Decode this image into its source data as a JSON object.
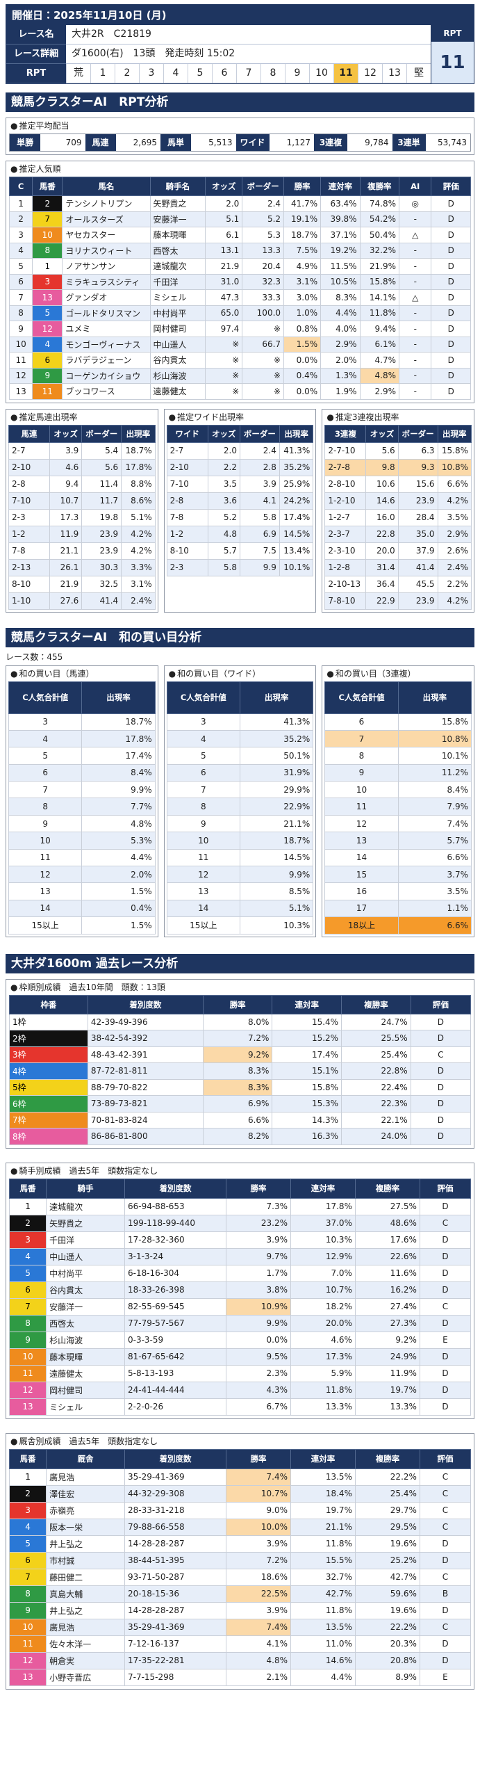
{
  "header": {
    "title": "開催日：2025年11月10日 (月)",
    "race_name_label": "レース名",
    "race_name": "大井2R　C21819",
    "detail_label": "レース詳細",
    "detail": "ダ1600(右)　13頭　発走時刻 15:02",
    "rpt_label": "RPT",
    "rpt_scale": [
      "荒",
      "1",
      "2",
      "3",
      "4",
      "5",
      "6",
      "7",
      "8",
      "9",
      "10",
      "11",
      "12",
      "13",
      "堅"
    ],
    "rpt_box_label": "RPT",
    "rpt_value": "11"
  },
  "rpt_analysis": {
    "title": "競馬クラスターAI　RPT分析",
    "payout": {
      "title": "推定平均配当",
      "items": [
        {
          "label": "単勝",
          "value": "709"
        },
        {
          "label": "馬連",
          "value": "2,695"
        },
        {
          "label": "馬単",
          "value": "5,513"
        },
        {
          "label": "ワイド",
          "value": "1,127"
        },
        {
          "label": "3連複",
          "value": "9,784"
        },
        {
          "label": "3連単",
          "value": "53,743"
        }
      ]
    },
    "popularity": {
      "title": "推定人気順",
      "columns": [
        "C",
        "馬番",
        "馬名",
        "騎手名",
        "オッズ",
        "ボーダー",
        "勝率",
        "連対率",
        "複勝率",
        "AI",
        "評価"
      ],
      "rows": [
        [
          "1",
          "2",
          "テンシノトリプン",
          "矢野貴之",
          "2.0",
          "2.4",
          "41.7%",
          "63.4%",
          "74.8%",
          "◎",
          "D"
        ],
        [
          "2",
          "7",
          "オールスターズ",
          "安藤洋一",
          "5.1",
          "5.2",
          "19.1%",
          "39.8%",
          "54.2%",
          "-",
          "D"
        ],
        [
          "3",
          "10",
          "ヤセカスター",
          "藤本現暉",
          "6.1",
          "5.3",
          "18.7%",
          "37.1%",
          "50.4%",
          "△",
          "D"
        ],
        [
          "4",
          "8",
          "ヨリナスウィート",
          "西啓太",
          "13.1",
          "13.3",
          "7.5%",
          "19.2%",
          "32.2%",
          "-",
          "D"
        ],
        [
          "5",
          "1",
          "ノアサンサン",
          "達城龍次",
          "21.9",
          "20.4",
          "4.9%",
          "11.5%",
          "21.9%",
          "-",
          "D"
        ],
        [
          "6",
          "3",
          "ミラキュラスシティ",
          "千田洋",
          "31.0",
          "32.3",
          "3.1%",
          "10.5%",
          "15.8%",
          "-",
          "D"
        ],
        [
          "7",
          "13",
          "グァンダオ",
          "ミシェル",
          "47.3",
          "33.3",
          "3.0%",
          "8.3%",
          "14.1%",
          "△",
          "D"
        ],
        [
          "8",
          "5",
          "ゴールドタリスマン",
          "中村尚平",
          "65.0",
          "100.0",
          "1.0%",
          "4.4%",
          "11.8%",
          "-",
          "D"
        ],
        [
          "9",
          "12",
          "ユメミ",
          "岡村健司",
          "97.4",
          "※",
          "0.8%",
          "4.0%",
          "9.4%",
          "-",
          "D"
        ],
        [
          "10",
          "4",
          "モンゴーヴィーナス",
          "中山遥人",
          "※",
          "66.7",
          "1.5%",
          "2.9%",
          "6.1%",
          "-",
          "D"
        ],
        [
          "11",
          "6",
          "ラバデラジェーン",
          "谷内貫太",
          "※",
          "※",
          "0.0%",
          "2.0%",
          "4.7%",
          "-",
          "D"
        ],
        [
          "12",
          "9",
          "コーゲンカイショウ",
          "杉山海波",
          "※",
          "※",
          "0.4%",
          "1.3%",
          "4.8%",
          "-",
          "D"
        ],
        [
          "13",
          "11",
          "ブッコワース",
          "遠藤健太",
          "※",
          "※",
          "0.0%",
          "1.9%",
          "2.9%",
          "-",
          "D"
        ]
      ]
    },
    "pair_tables": [
      {
        "title": "推定馬連出現率",
        "columns": [
          "馬連",
          "オッズ",
          "ボーダー",
          "出現率"
        ],
        "rows": [
          [
            "2-7",
            "3.9",
            "5.4",
            "18.7%"
          ],
          [
            "2-10",
            "4.6",
            "5.6",
            "17.8%"
          ],
          [
            "2-8",
            "9.4",
            "11.4",
            "8.8%"
          ],
          [
            "7-10",
            "10.7",
            "11.7",
            "8.6%"
          ],
          [
            "2-3",
            "17.3",
            "19.8",
            "5.1%"
          ],
          [
            "1-2",
            "11.9",
            "23.9",
            "4.2%"
          ],
          [
            "7-8",
            "21.1",
            "23.9",
            "4.2%"
          ],
          [
            "2-13",
            "26.1",
            "30.3",
            "3.3%"
          ],
          [
            "8-10",
            "21.9",
            "32.5",
            "3.1%"
          ],
          [
            "1-10",
            "27.6",
            "41.4",
            "2.4%"
          ]
        ]
      },
      {
        "title": "推定ワイド出現率",
        "columns": [
          "ワイド",
          "オッズ",
          "ボーダー",
          "出現率"
        ],
        "rows": [
          [
            "2-7",
            "2.0",
            "2.4",
            "41.3%"
          ],
          [
            "2-10",
            "2.2",
            "2.8",
            "35.2%"
          ],
          [
            "7-10",
            "3.5",
            "3.9",
            "25.9%"
          ],
          [
            "2-8",
            "3.6",
            "4.1",
            "24.2%"
          ],
          [
            "7-8",
            "5.2",
            "5.8",
            "17.4%"
          ],
          [
            "1-2",
            "4.8",
            "6.9",
            "14.5%"
          ],
          [
            "8-10",
            "5.7",
            "7.5",
            "13.4%"
          ],
          [
            "2-3",
            "5.8",
            "9.9",
            "10.1%"
          ]
        ]
      },
      {
        "title": "推定3連複出現率",
        "columns": [
          "3連複",
          "オッズ",
          "ボーダー",
          "出現率"
        ],
        "rows": [
          [
            "2-7-10",
            "5.6",
            "6.3",
            "15.8%"
          ],
          [
            "2-7-8",
            "9.8",
            "9.3",
            "10.8%"
          ],
          [
            "2-8-10",
            "10.6",
            "15.6",
            "6.6%"
          ],
          [
            "1-2-10",
            "14.6",
            "23.9",
            "4.2%"
          ],
          [
            "1-2-7",
            "16.0",
            "28.4",
            "3.5%"
          ],
          [
            "2-3-7",
            "22.8",
            "35.0",
            "2.9%"
          ],
          [
            "2-3-10",
            "20.0",
            "37.9",
            "2.6%"
          ],
          [
            "1-2-8",
            "31.4",
            "41.4",
            "2.4%"
          ],
          [
            "2-10-13",
            "36.4",
            "45.5",
            "2.2%"
          ],
          [
            "7-8-10",
            "22.9",
            "23.9",
            "4.2%"
          ]
        ]
      }
    ]
  },
  "sum_analysis": {
    "title": "競馬クラスターAI　和の買い目分析",
    "race_count": "レース数：455",
    "tables": [
      {
        "title": "和の買い目（馬連）",
        "columns": [
          "C人気合計値",
          "出現率"
        ],
        "rows": [
          [
            "3",
            "18.7%"
          ],
          [
            "4",
            "17.8%"
          ],
          [
            "5",
            "17.4%"
          ],
          [
            "6",
            "8.4%"
          ],
          [
            "7",
            "9.9%"
          ],
          [
            "8",
            "7.7%"
          ],
          [
            "9",
            "4.8%"
          ],
          [
            "10",
            "5.3%"
          ],
          [
            "11",
            "4.4%"
          ],
          [
            "12",
            "2.0%"
          ],
          [
            "13",
            "1.5%"
          ],
          [
            "14",
            "0.4%"
          ],
          [
            "15以上",
            "1.5%"
          ]
        ]
      },
      {
        "title": "和の買い目（ワイド）",
        "columns": [
          "C人気合計値",
          "出現率"
        ],
        "rows": [
          [
            "3",
            "41.3%"
          ],
          [
            "4",
            "35.2%"
          ],
          [
            "5",
            "50.1%"
          ],
          [
            "6",
            "31.9%"
          ],
          [
            "7",
            "29.9%"
          ],
          [
            "8",
            "22.9%"
          ],
          [
            "9",
            "21.1%"
          ],
          [
            "10",
            "18.7%"
          ],
          [
            "11",
            "14.5%"
          ],
          [
            "12",
            "9.9%"
          ],
          [
            "13",
            "8.5%"
          ],
          [
            "14",
            "5.1%"
          ],
          [
            "15以上",
            "10.3%"
          ]
        ]
      },
      {
        "title": "和の買い目（3連複）",
        "columns": [
          "C人気合計値",
          "出現率"
        ],
        "rows": [
          [
            "6",
            "15.8%"
          ],
          [
            "7",
            "10.8%"
          ],
          [
            "8",
            "10.1%"
          ],
          [
            "9",
            "11.2%"
          ],
          [
            "10",
            "8.4%"
          ],
          [
            "11",
            "7.9%"
          ],
          [
            "12",
            "7.4%"
          ],
          [
            "13",
            "5.7%"
          ],
          [
            "14",
            "6.6%"
          ],
          [
            "15",
            "3.7%"
          ],
          [
            "16",
            "3.5%"
          ],
          [
            "17",
            "1.1%"
          ],
          [
            "18以上",
            "6.6%"
          ]
        ]
      }
    ]
  },
  "past_analysis": {
    "title": "大井ダ1600m 過去レース分析",
    "frame": {
      "title": "枠順別成績　過去10年間　頭数：13頭",
      "columns": [
        "枠番",
        "着別度数",
        "勝率",
        "連対率",
        "複勝率",
        "評価"
      ],
      "rows": [
        [
          "1枠",
          "42-39-49-396",
          "8.0%",
          "15.4%",
          "24.7%",
          "D"
        ],
        [
          "2枠",
          "38-42-54-392",
          "7.2%",
          "15.2%",
          "25.5%",
          "D"
        ],
        [
          "3枠",
          "48-43-42-391",
          "9.2%",
          "17.4%",
          "25.4%",
          "C"
        ],
        [
          "4枠",
          "87-72-81-811",
          "8.3%",
          "15.1%",
          "22.8%",
          "D"
        ],
        [
          "5枠",
          "88-79-70-822",
          "8.3%",
          "15.8%",
          "22.4%",
          "D"
        ],
        [
          "6枠",
          "73-89-73-821",
          "6.9%",
          "15.3%",
          "22.3%",
          "D"
        ],
        [
          "7枠",
          "70-81-83-824",
          "6.6%",
          "14.3%",
          "22.1%",
          "D"
        ],
        [
          "8枠",
          "86-86-81-800",
          "8.2%",
          "16.3%",
          "24.0%",
          "D"
        ]
      ]
    },
    "jockey": {
      "title": "騎手別成績　過去5年　頭数指定なし",
      "columns": [
        "馬番",
        "騎手",
        "着別度数",
        "勝率",
        "連対率",
        "複勝率",
        "評価"
      ],
      "rows": [
        [
          "1",
          "達城龍次",
          "66-94-88-653",
          "7.3%",
          "17.8%",
          "27.5%",
          "D"
        ],
        [
          "2",
          "矢野貴之",
          "199-118-99-440",
          "23.2%",
          "37.0%",
          "48.6%",
          "C"
        ],
        [
          "3",
          "千田洋",
          "17-28-32-360",
          "3.9%",
          "10.3%",
          "17.6%",
          "D"
        ],
        [
          "4",
          "中山遥人",
          "3-1-3-24",
          "9.7%",
          "12.9%",
          "22.6%",
          "D"
        ],
        [
          "5",
          "中村尚平",
          "6-18-16-304",
          "1.7%",
          "7.0%",
          "11.6%",
          "D"
        ],
        [
          "6",
          "谷内貫太",
          "18-33-26-398",
          "3.8%",
          "10.7%",
          "16.2%",
          "D"
        ],
        [
          "7",
          "安藤洋一",
          "82-55-69-545",
          "10.9%",
          "18.2%",
          "27.4%",
          "C"
        ],
        [
          "8",
          "西啓太",
          "77-79-57-567",
          "9.9%",
          "20.0%",
          "27.3%",
          "D"
        ],
        [
          "9",
          "杉山海波",
          "0-3-3-59",
          "0.0%",
          "4.6%",
          "9.2%",
          "E"
        ],
        [
          "10",
          "藤本現暉",
          "81-67-65-642",
          "9.5%",
          "17.3%",
          "24.9%",
          "D"
        ],
        [
          "11",
          "遠藤健太",
          "5-8-13-193",
          "2.3%",
          "5.9%",
          "11.9%",
          "D"
        ],
        [
          "12",
          "岡村健司",
          "24-41-44-444",
          "4.3%",
          "11.8%",
          "19.7%",
          "D"
        ],
        [
          "13",
          "ミシェル",
          "2-2-0-26",
          "6.7%",
          "13.3%",
          "13.3%",
          "D"
        ]
      ]
    },
    "stable": {
      "title": "厩舎別成績　過去5年　頭数指定なし",
      "columns": [
        "馬番",
        "厩舎",
        "着別度数",
        "勝率",
        "連対率",
        "複勝率",
        "評価"
      ],
      "rows": [
        [
          "1",
          "廣見浩",
          "35-29-41-369",
          "7.4%",
          "13.5%",
          "22.2%",
          "C"
        ],
        [
          "2",
          "澤佳宏",
          "44-32-29-308",
          "10.7%",
          "18.4%",
          "25.4%",
          "C"
        ],
        [
          "3",
          "赤嶺亮",
          "28-33-31-218",
          "9.0%",
          "19.7%",
          "29.7%",
          "C"
        ],
        [
          "4",
          "阪本一栄",
          "79-88-66-558",
          "10.0%",
          "21.1%",
          "29.5%",
          "C"
        ],
        [
          "5",
          "井上弘之",
          "14-28-28-287",
          "3.9%",
          "11.8%",
          "19.6%",
          "D"
        ],
        [
          "6",
          "市村誠",
          "38-44-51-395",
          "7.2%",
          "15.5%",
          "25.2%",
          "D"
        ],
        [
          "7",
          "藤田健二",
          "93-71-50-287",
          "18.6%",
          "32.7%",
          "42.7%",
          "C"
        ],
        [
          "8",
          "真島大輔",
          "20-18-15-36",
          "22.5%",
          "42.7%",
          "59.6%",
          "B"
        ],
        [
          "9",
          "井上弘之",
          "14-28-28-287",
          "3.9%",
          "11.8%",
          "19.6%",
          "D"
        ],
        [
          "10",
          "廣見浩",
          "35-29-41-369",
          "7.4%",
          "13.5%",
          "22.2%",
          "C"
        ],
        [
          "11",
          "佐々木洋一",
          "7-12-16-137",
          "4.1%",
          "11.0%",
          "20.3%",
          "D"
        ],
        [
          "12",
          "朝倉実",
          "17-35-22-281",
          "4.8%",
          "14.6%",
          "20.8%",
          "D"
        ],
        [
          "13",
          "小野寺晋広",
          "7-7-15-298",
          "2.1%",
          "4.4%",
          "8.9%",
          "E"
        ]
      ]
    }
  }
}
